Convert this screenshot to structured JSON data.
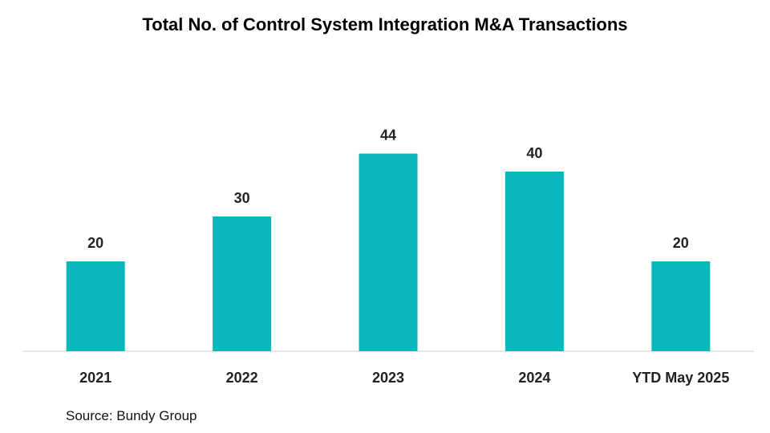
{
  "title": "Total No. of Control System Integration M&A Transactions",
  "source": "Source: Bundy Group",
  "chart_data": {
    "type": "bar",
    "title": "Total No. of Control System Integration M&A Transactions",
    "categories": [
      "2021",
      "2022",
      "2023",
      "2024",
      "YTD May 2025"
    ],
    "values": [
      20,
      30,
      44,
      40,
      20
    ],
    "data_labels": [
      "20",
      "30",
      "44",
      "40",
      "20"
    ],
    "xlabel": "",
    "ylabel": "",
    "ylim": [
      0,
      50
    ],
    "grid": false,
    "legend": "none",
    "bar_color": "#0ab8bb",
    "baseline_color": "#e6e6e6"
  }
}
